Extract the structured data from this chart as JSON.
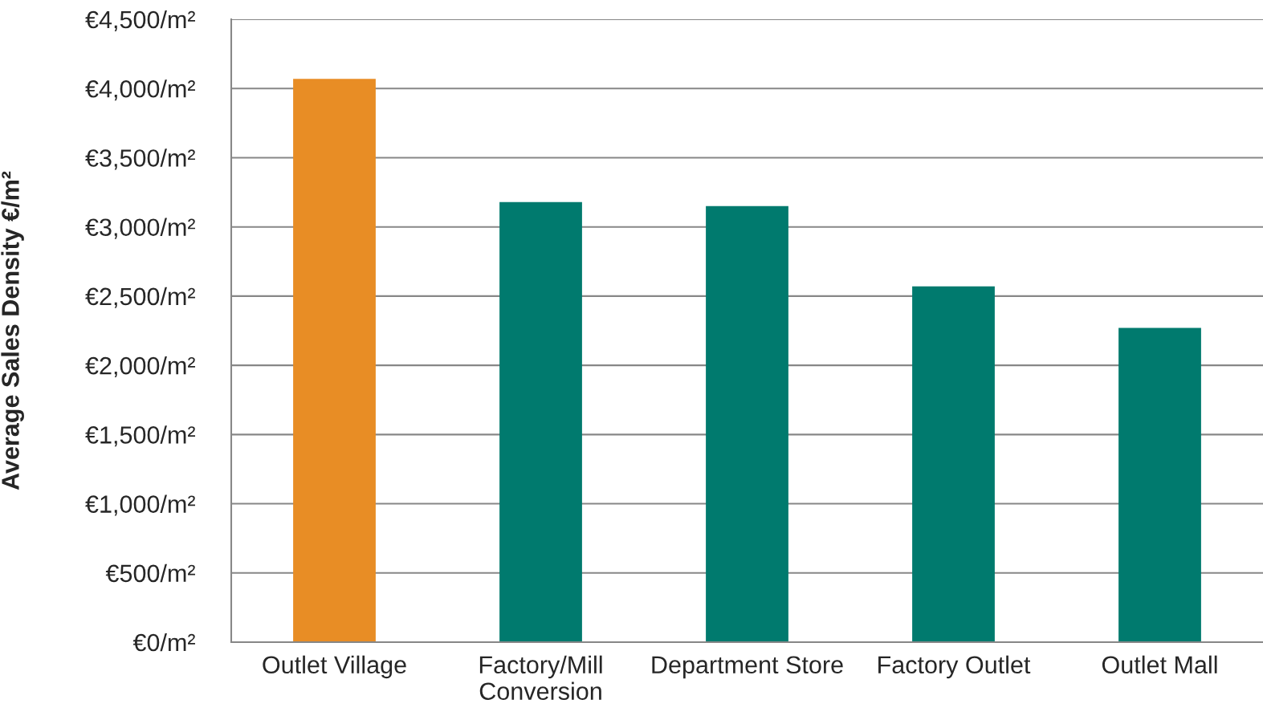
{
  "chart_data": {
    "type": "bar",
    "ylabel": "Average Sales Density €/m²",
    "categories": [
      "Outlet Village",
      "Factory/Mill\nConversion",
      "Department Store",
      "Factory Outlet",
      "Outlet Mall"
    ],
    "values": [
      4070,
      3180,
      3150,
      2570,
      2270
    ],
    "colors": [
      "#e88d25",
      "#007a6e",
      "#007a6e",
      "#007a6e",
      "#007a6e"
    ],
    "ylim": [
      0,
      4500
    ],
    "yticks": [
      {
        "value": 0,
        "label": "€0/m²"
      },
      {
        "value": 500,
        "label": "€500/m²"
      },
      {
        "value": 1000,
        "label": "€1,000/m²"
      },
      {
        "value": 1500,
        "label": "€1,500/m²"
      },
      {
        "value": 2000,
        "label": "€2,000/m²"
      },
      {
        "value": 2500,
        "label": "€2,500/m²"
      },
      {
        "value": 3000,
        "label": "€3,000/m²"
      },
      {
        "value": 3500,
        "label": "€3,500/m²"
      },
      {
        "value": 4000,
        "label": "€4,000/m²"
      },
      {
        "value": 4500,
        "label": "€4,500/m²"
      }
    ],
    "grid": "y",
    "legend": false
  }
}
